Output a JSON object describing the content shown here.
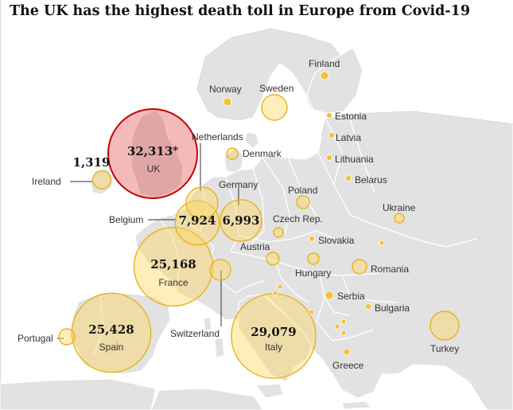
{
  "title": "The UK has the highest death toll in Europe from Covid-19",
  "colors": {
    "uk_bubble": "#c70000",
    "bubble": "#f5c033",
    "land": "#e2e2e2",
    "sea": "#ffffff"
  },
  "countries": [
    {
      "name": "UK",
      "deaths": 32313,
      "deaths_label": "32,313",
      "note": "*",
      "highlight": true
    },
    {
      "name": "Italy",
      "deaths": 29079,
      "deaths_label": "29,079"
    },
    {
      "name": "Spain",
      "deaths": 25428,
      "deaths_label": "25,428"
    },
    {
      "name": "France",
      "deaths": 25168,
      "deaths_label": "25,168"
    },
    {
      "name": "Belgium",
      "deaths": 7924,
      "deaths_label": "7,924"
    },
    {
      "name": "Germany",
      "deaths": 6993,
      "deaths_label": "6,993"
    },
    {
      "name": "Ireland",
      "deaths": 1319,
      "deaths_label": "1,319"
    },
    {
      "name": "Netherlands"
    },
    {
      "name": "Switzerland"
    },
    {
      "name": "Portugal"
    },
    {
      "name": "Sweden"
    },
    {
      "name": "Norway"
    },
    {
      "name": "Finland"
    },
    {
      "name": "Denmark"
    },
    {
      "name": "Estonia"
    },
    {
      "name": "Latvia"
    },
    {
      "name": "Lithuania"
    },
    {
      "name": "Belarus"
    },
    {
      "name": "Poland"
    },
    {
      "name": "Ukraine"
    },
    {
      "name": "Czech Rep."
    },
    {
      "name": "Slovakia"
    },
    {
      "name": "Austria"
    },
    {
      "name": "Hungary"
    },
    {
      "name": "Romania"
    },
    {
      "name": "Serbia"
    },
    {
      "name": "Bulgaria"
    },
    {
      "name": "Greece"
    },
    {
      "name": "Turkey"
    }
  ]
}
